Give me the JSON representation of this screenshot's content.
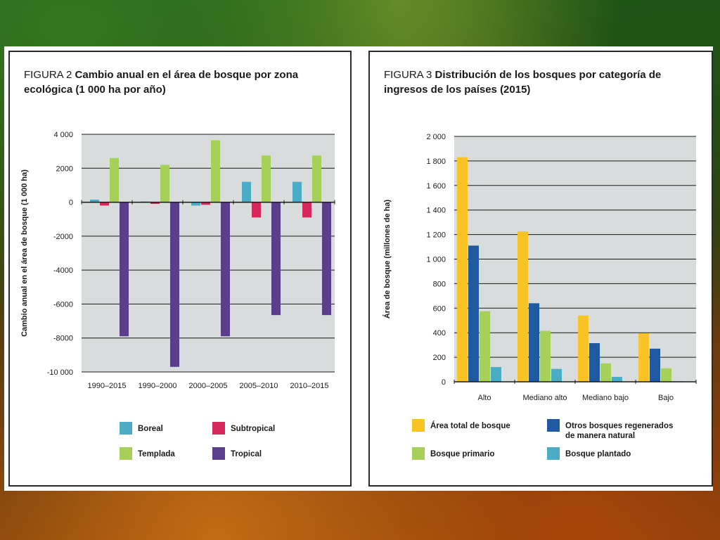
{
  "figures": [
    {
      "number_label": "FIGURA 2",
      "title": "Cambio anual en el área de bosque por zona ecológica (1 000 ha por año)"
    },
    {
      "number_label": "FIGURA 3",
      "title": "Distribución de los bosques por categoría de ingresos de los países (2015)"
    }
  ],
  "colors": {
    "boreal": "#4aacc5",
    "subtropical": "#d6285a",
    "templada": "#a6d05a",
    "tropical": "#5b3f8c",
    "area_total": "#f7c325",
    "otros_regenerados": "#1f5aa0",
    "bosque_primario": "#a6d05a",
    "bosque_plantado": "#4aacc5",
    "plot_bg": "#d9dcdc"
  },
  "chart_data": [
    {
      "type": "bar",
      "title": "Cambio anual en el área de bosque por zona ecológica (1 000 ha por año)",
      "ylabel": "Cambio anual en el área de bosque (1 000 ha)",
      "xlabel": "",
      "categories": [
        "1990–2015",
        "1990–2000",
        "2000–2005",
        "2005–2010",
        "2010–2015"
      ],
      "ylim": [
        -10000,
        4000
      ],
      "yticks": [
        4000,
        2000,
        0,
        -2000,
        -4000,
        -6000,
        -8000,
        -10000
      ],
      "ytick_labels": [
        "4 000",
        "2000",
        "0",
        "-2000",
        "-4000",
        "-6000",
        "-8000",
        "-10 000"
      ],
      "series": [
        {
          "name": "Boreal",
          "color": "#4aacc5",
          "values": [
            150,
            40,
            -200,
            1200,
            1200
          ]
        },
        {
          "name": "Subtropical",
          "color": "#d6285a",
          "values": [
            -200,
            -100,
            -150,
            -900,
            -900
          ]
        },
        {
          "name": "Templada",
          "color": "#a6d05a",
          "values": [
            2600,
            2200,
            3650,
            2750,
            2750
          ]
        },
        {
          "name": "Tropical",
          "color": "#5b3f8c",
          "values": [
            -7900,
            -9700,
            -7900,
            -6650,
            -6650
          ]
        }
      ],
      "legend": {
        "placement": "bottom",
        "entries": [
          "Boreal",
          "Subtropical",
          "Templada",
          "Tropical"
        ]
      },
      "grid": true
    },
    {
      "type": "bar",
      "title": "Distribución de los bosques por categoría de ingresos de los países (2015)",
      "ylabel": "Área de bosque (millones de ha)",
      "xlabel": "",
      "categories": [
        "Alto",
        "Mediano alto",
        "Mediano bajo",
        "Bajo"
      ],
      "ylim": [
        0,
        2000
      ],
      "yticks": [
        2000,
        1800,
        1600,
        1400,
        1200,
        1000,
        800,
        600,
        400,
        200,
        0
      ],
      "ytick_labels": [
        "2 000",
        "1 800",
        "1 600",
        "1 400",
        "1 200",
        "1 000",
        "800",
        "600",
        "400",
        "200",
        "0"
      ],
      "series": [
        {
          "name": "Área total de bosque",
          "color": "#f7c325",
          "values": [
            1830,
            1225,
            540,
            395
          ]
        },
        {
          "name": "Otros bosques regenerados de manera natural",
          "color": "#1f5aa0",
          "values": [
            1110,
            640,
            315,
            270
          ]
        },
        {
          "name": "Bosque primario",
          "color": "#a6d05a",
          "values": [
            575,
            415,
            150,
            110
          ]
        },
        {
          "name": "Bosque plantado",
          "color": "#4aacc5",
          "values": [
            120,
            105,
            40,
            5
          ]
        }
      ],
      "legend": {
        "placement": "bottom",
        "entries": [
          "Área total de bosque",
          "Otros bosques regenerados de manera natural",
          "Bosque primario",
          "Bosque plantado"
        ]
      },
      "grid": true
    }
  ]
}
